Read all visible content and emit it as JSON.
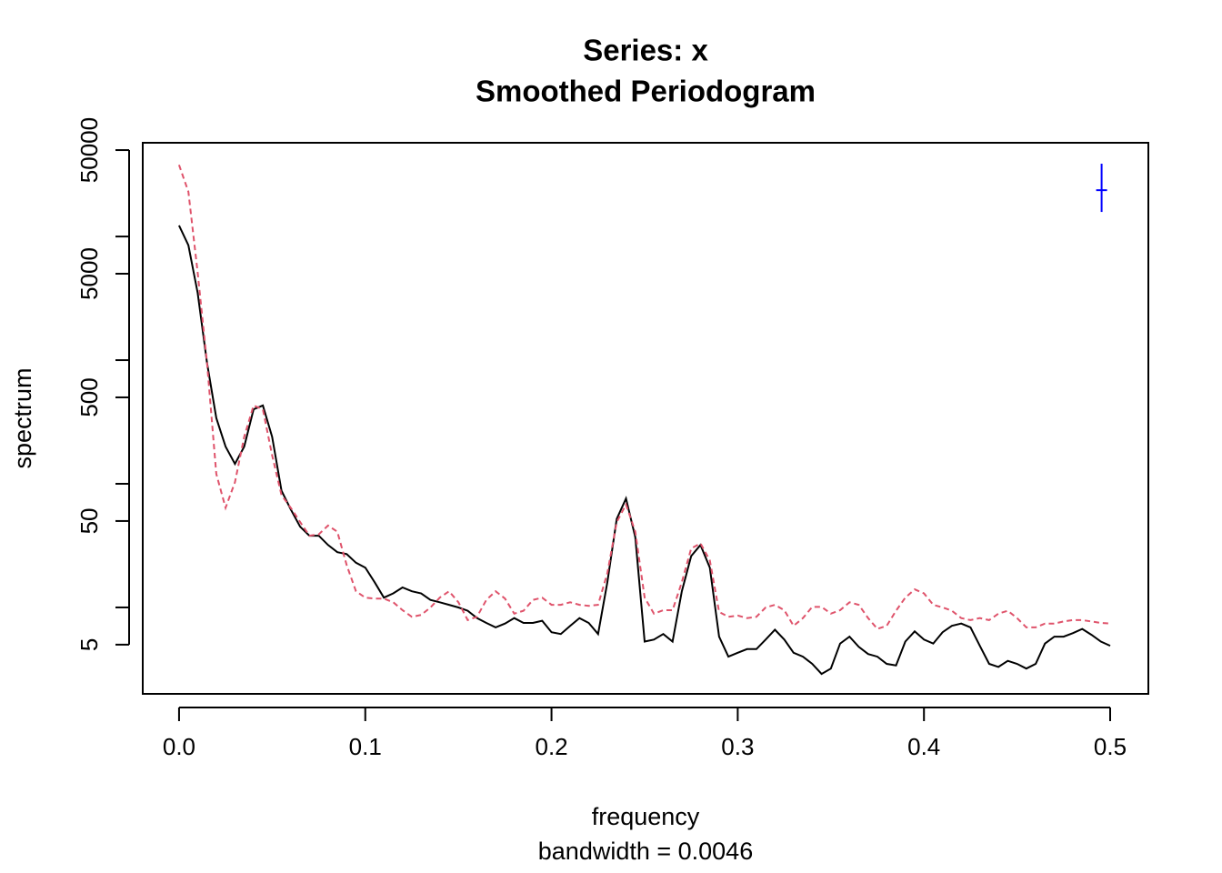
{
  "chart_data": {
    "type": "line",
    "title": "Series: x",
    "subtitle": "Smoothed Periodogram",
    "xlabel": "frequency",
    "sub_xlabel": "bandwidth = 0.0046",
    "ylabel": "spectrum",
    "log_y": true,
    "xlim": [
      -0.0195,
      0.5205
    ],
    "ylim": [
      2.0,
      57300
    ],
    "xticks": [
      {
        "value": 0,
        "label": "0.0"
      },
      0.1,
      0.2,
      0.3,
      0.4,
      0.5
    ],
    "yticks": [
      5,
      50,
      500,
      5000,
      50000
    ],
    "yticks_minor": [
      10,
      100,
      1000,
      10000
    ],
    "x": [
      0,
      0.005,
      0.01,
      0.015,
      0.02,
      0.025,
      0.03,
      0.035,
      0.04,
      0.045,
      0.05,
      0.055,
      0.06,
      0.065,
      0.07,
      0.075,
      0.08,
      0.085,
      0.09,
      0.095,
      0.1,
      0.105,
      0.11,
      0.115,
      0.12,
      0.125,
      0.13,
      0.135,
      0.14,
      0.145,
      0.15,
      0.155,
      0.16,
      0.165,
      0.17,
      0.175,
      0.18,
      0.185,
      0.19,
      0.195,
      0.2,
      0.205,
      0.21,
      0.215,
      0.22,
      0.225,
      0.23,
      0.235,
      0.24,
      0.245,
      0.25,
      0.255,
      0.26,
      0.265,
      0.27,
      0.275,
      0.28,
      0.285,
      0.29,
      0.295,
      0.3,
      0.305,
      0.31,
      0.315,
      0.32,
      0.325,
      0.33,
      0.335,
      0.34,
      0.345,
      0.35,
      0.355,
      0.36,
      0.365,
      0.37,
      0.375,
      0.38,
      0.385,
      0.39,
      0.395,
      0.4,
      0.405,
      0.41,
      0.415,
      0.42,
      0.425,
      0.43,
      0.435,
      0.44,
      0.445,
      0.45,
      0.455,
      0.46,
      0.465,
      0.47,
      0.475,
      0.48,
      0.485,
      0.49,
      0.495,
      0.5
    ],
    "series": [
      {
        "color": "#000000",
        "dash": false,
        "values": [
          12300,
          8500,
          3500,
          950,
          340,
          200,
          145,
          200,
          400,
          430,
          240,
          88,
          62,
          45,
          38,
          38,
          32,
          28,
          27,
          23,
          21,
          16,
          12,
          13,
          14.5,
          13.5,
          13,
          11.5,
          11,
          10.5,
          10,
          9.4,
          8.2,
          7.5,
          6.9,
          7.4,
          8.2,
          7.5,
          7.5,
          7.8,
          6.3,
          6.1,
          7.1,
          8.2,
          7.5,
          6.1,
          16,
          52,
          76,
          37,
          5.3,
          5.5,
          6.1,
          5.3,
          13.5,
          26,
          32,
          21,
          5.8,
          4.0,
          4.3,
          4.6,
          4.6,
          5.5,
          6.6,
          5.5,
          4.3,
          4.0,
          3.5,
          2.9,
          3.2,
          5.1,
          5.8,
          4.8,
          4.2,
          4.0,
          3.5,
          3.4,
          5.3,
          6.4,
          5.5,
          5.1,
          6.3,
          7.1,
          7.4,
          6.9,
          4.9,
          3.5,
          3.3,
          3.7,
          3.5,
          3.2,
          3.5,
          5.1,
          5.8,
          5.8,
          6.2,
          6.7,
          6.0,
          5.3,
          4.9
        ]
      },
      {
        "color": "#df536b",
        "dash": true,
        "values": [
          38000,
          23000,
          5100,
          950,
          120,
          64,
          103,
          240,
          430,
          400,
          170,
          81,
          64,
          49,
          38,
          39,
          46,
          41,
          22,
          13.5,
          12,
          11.8,
          11.8,
          11,
          9.5,
          8.4,
          8.7,
          10,
          12,
          13.5,
          11,
          7.9,
          8.4,
          11.5,
          13.5,
          11.8,
          8.9,
          9.4,
          11.5,
          12,
          10.5,
          10.5,
          11,
          10.5,
          10.3,
          10.5,
          19,
          49,
          68,
          41,
          12,
          8.9,
          9.5,
          9.5,
          16,
          30,
          33,
          24,
          9.2,
          8.4,
          8.6,
          8.2,
          8.4,
          10,
          10.5,
          9.5,
          7.1,
          8.2,
          10.1,
          10.1,
          8.9,
          9.5,
          11,
          10.5,
          8.2,
          6.7,
          7.1,
          9.4,
          12,
          14,
          13,
          10.5,
          10,
          9.4,
          8.2,
          7.9,
          8.2,
          7.9,
          8.9,
          9.4,
          8.2,
          6.9,
          6.9,
          7.4,
          7.4,
          7.7,
          7.9,
          7.9,
          7.7,
          7.5,
          7.4
        ]
      }
    ],
    "ci_bar": {
      "color": "#0000ff",
      "x": 0.4954,
      "center": 23700,
      "lower": 15800,
      "upper": 38800
    }
  }
}
